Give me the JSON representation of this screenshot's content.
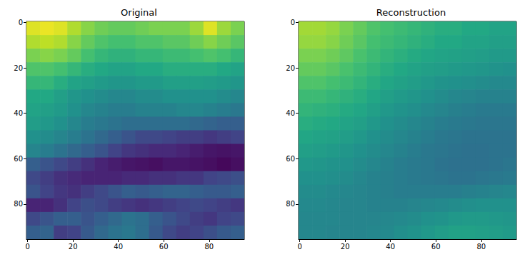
{
  "chart_data": [
    {
      "type": "heatmap",
      "title": "Original",
      "x_edges": [
        -0.5,
        5.5,
        11.5,
        17.5,
        23.5,
        29.5,
        35.5,
        41.5,
        47.5,
        53.5,
        59.5,
        65.5,
        71.5,
        77.5,
        83.5,
        89.5,
        95.5
      ],
      "y_edges": [
        -0.5,
        5.5,
        11.5,
        17.5,
        23.5,
        29.5,
        35.5,
        41.5,
        47.5,
        53.5,
        59.5,
        65.5,
        71.5,
        77.5,
        83.5,
        89.5,
        95.5
      ],
      "z": [
        [
          0.95,
          0.97,
          0.95,
          0.88,
          0.82,
          0.78,
          0.76,
          0.76,
          0.78,
          0.8,
          0.8,
          0.8,
          0.85,
          0.95,
          0.85,
          0.8
        ],
        [
          0.88,
          0.9,
          0.88,
          0.82,
          0.76,
          0.72,
          0.7,
          0.7,
          0.72,
          0.72,
          0.74,
          0.74,
          0.78,
          0.82,
          0.78,
          0.74
        ],
        [
          0.8,
          0.82,
          0.8,
          0.76,
          0.7,
          0.66,
          0.64,
          0.64,
          0.66,
          0.66,
          0.68,
          0.68,
          0.7,
          0.72,
          0.7,
          0.66
        ],
        [
          0.72,
          0.72,
          0.7,
          0.66,
          0.62,
          0.6,
          0.58,
          0.58,
          0.6,
          0.6,
          0.62,
          0.62,
          0.62,
          0.62,
          0.6,
          0.58
        ],
        [
          0.66,
          0.66,
          0.62,
          0.58,
          0.56,
          0.54,
          0.52,
          0.52,
          0.54,
          0.54,
          0.56,
          0.56,
          0.56,
          0.55,
          0.54,
          0.52
        ],
        [
          0.6,
          0.6,
          0.56,
          0.52,
          0.5,
          0.48,
          0.46,
          0.46,
          0.48,
          0.48,
          0.5,
          0.5,
          0.5,
          0.5,
          0.48,
          0.46
        ],
        [
          0.58,
          0.56,
          0.54,
          0.5,
          0.46,
          0.44,
          0.42,
          0.42,
          0.44,
          0.44,
          0.44,
          0.46,
          0.46,
          0.44,
          0.42,
          0.4
        ],
        [
          0.55,
          0.53,
          0.5,
          0.46,
          0.42,
          0.4,
          0.38,
          0.36,
          0.36,
          0.36,
          0.36,
          0.36,
          0.34,
          0.32,
          0.3,
          0.3
        ],
        [
          0.5,
          0.48,
          0.45,
          0.42,
          0.38,
          0.34,
          0.3,
          0.26,
          0.22,
          0.22,
          0.2,
          0.18,
          0.18,
          0.16,
          0.18,
          0.2
        ],
        [
          0.45,
          0.42,
          0.38,
          0.34,
          0.3,
          0.26,
          0.2,
          0.16,
          0.14,
          0.12,
          0.12,
          0.1,
          0.08,
          0.06,
          0.05,
          0.06
        ],
        [
          0.3,
          0.26,
          0.22,
          0.18,
          0.14,
          0.1,
          0.08,
          0.06,
          0.05,
          0.04,
          0.06,
          0.06,
          0.05,
          0.04,
          0.02,
          0.04
        ],
        [
          0.22,
          0.18,
          0.14,
          0.12,
          0.1,
          0.1,
          0.1,
          0.12,
          0.12,
          0.14,
          0.14,
          0.16,
          0.16,
          0.2,
          0.22,
          0.24
        ],
        [
          0.26,
          0.2,
          0.16,
          0.14,
          0.18,
          0.22,
          0.26,
          0.3,
          0.28,
          0.3,
          0.32,
          0.32,
          0.3,
          0.28,
          0.28,
          0.3
        ],
        [
          0.1,
          0.1,
          0.14,
          0.2,
          0.24,
          0.22,
          0.18,
          0.16,
          0.14,
          0.16,
          0.18,
          0.2,
          0.22,
          0.2,
          0.18,
          0.16
        ],
        [
          0.22,
          0.26,
          0.3,
          0.3,
          0.26,
          0.3,
          0.34,
          0.38,
          0.36,
          0.3,
          0.26,
          0.22,
          0.18,
          0.16,
          0.2,
          0.22
        ],
        [
          0.3,
          0.32,
          0.18,
          0.2,
          0.28,
          0.34,
          0.38,
          0.4,
          0.36,
          0.28,
          0.22,
          0.18,
          0.2,
          0.24,
          0.28,
          0.3
        ]
      ],
      "zlim": [
        0,
        1
      ],
      "xlim": [
        -0.5,
        95.5
      ],
      "ylim": [
        95.5,
        -0.5
      ],
      "xticks": [
        0,
        20,
        40,
        60,
        80
      ],
      "yticks": [
        0,
        20,
        40,
        60,
        80
      ]
    },
    {
      "type": "heatmap",
      "title": "Reconstruction",
      "x_edges": [
        -0.5,
        5.5,
        11.5,
        17.5,
        23.5,
        29.5,
        35.5,
        41.5,
        47.5,
        53.5,
        59.5,
        65.5,
        71.5,
        77.5,
        83.5,
        89.5,
        95.5
      ],
      "y_edges": [
        -0.5,
        5.5,
        11.5,
        17.5,
        23.5,
        29.5,
        35.5,
        41.5,
        47.5,
        53.5,
        59.5,
        65.5,
        71.5,
        77.5,
        83.5,
        89.5,
        95.5
      ],
      "z": [
        [
          0.86,
          0.86,
          0.84,
          0.8,
          0.76,
          0.72,
          0.7,
          0.68,
          0.66,
          0.64,
          0.62,
          0.62,
          0.6,
          0.6,
          0.58,
          0.58
        ],
        [
          0.84,
          0.84,
          0.82,
          0.78,
          0.74,
          0.7,
          0.68,
          0.66,
          0.64,
          0.62,
          0.6,
          0.6,
          0.58,
          0.58,
          0.56,
          0.56
        ],
        [
          0.8,
          0.8,
          0.78,
          0.75,
          0.71,
          0.68,
          0.65,
          0.63,
          0.61,
          0.59,
          0.58,
          0.57,
          0.56,
          0.55,
          0.54,
          0.54
        ],
        [
          0.76,
          0.76,
          0.74,
          0.71,
          0.68,
          0.65,
          0.62,
          0.6,
          0.58,
          0.56,
          0.55,
          0.54,
          0.53,
          0.52,
          0.51,
          0.5
        ],
        [
          0.72,
          0.72,
          0.7,
          0.68,
          0.65,
          0.62,
          0.59,
          0.57,
          0.55,
          0.53,
          0.51,
          0.5,
          0.49,
          0.48,
          0.47,
          0.47
        ],
        [
          0.68,
          0.68,
          0.66,
          0.64,
          0.62,
          0.59,
          0.56,
          0.54,
          0.52,
          0.5,
          0.48,
          0.46,
          0.45,
          0.44,
          0.44,
          0.44
        ],
        [
          0.65,
          0.64,
          0.63,
          0.61,
          0.59,
          0.56,
          0.53,
          0.51,
          0.49,
          0.47,
          0.45,
          0.43,
          0.42,
          0.41,
          0.41,
          0.41
        ],
        [
          0.62,
          0.61,
          0.6,
          0.58,
          0.56,
          0.53,
          0.5,
          0.48,
          0.46,
          0.44,
          0.42,
          0.41,
          0.4,
          0.39,
          0.39,
          0.39
        ],
        [
          0.59,
          0.58,
          0.57,
          0.55,
          0.53,
          0.5,
          0.48,
          0.46,
          0.44,
          0.42,
          0.4,
          0.39,
          0.38,
          0.38,
          0.38,
          0.38
        ],
        [
          0.56,
          0.55,
          0.54,
          0.52,
          0.5,
          0.48,
          0.46,
          0.44,
          0.42,
          0.4,
          0.39,
          0.38,
          0.37,
          0.37,
          0.38,
          0.38
        ],
        [
          0.53,
          0.52,
          0.51,
          0.5,
          0.48,
          0.46,
          0.44,
          0.42,
          0.41,
          0.4,
          0.38,
          0.37,
          0.37,
          0.37,
          0.38,
          0.39
        ],
        [
          0.5,
          0.5,
          0.49,
          0.48,
          0.46,
          0.44,
          0.43,
          0.42,
          0.41,
          0.4,
          0.39,
          0.38,
          0.38,
          0.39,
          0.4,
          0.41
        ],
        [
          0.48,
          0.48,
          0.47,
          0.46,
          0.45,
          0.44,
          0.43,
          0.42,
          0.42,
          0.42,
          0.42,
          0.42,
          0.43,
          0.44,
          0.45,
          0.46
        ],
        [
          0.47,
          0.47,
          0.46,
          0.45,
          0.45,
          0.44,
          0.44,
          0.44,
          0.45,
          0.46,
          0.47,
          0.48,
          0.49,
          0.5,
          0.5,
          0.5
        ],
        [
          0.46,
          0.46,
          0.46,
          0.45,
          0.45,
          0.45,
          0.46,
          0.47,
          0.48,
          0.5,
          0.51,
          0.53,
          0.54,
          0.54,
          0.53,
          0.52
        ],
        [
          0.46,
          0.46,
          0.45,
          0.45,
          0.45,
          0.46,
          0.47,
          0.49,
          0.51,
          0.53,
          0.55,
          0.57,
          0.57,
          0.56,
          0.55,
          0.54
        ]
      ],
      "zlim": [
        0,
        1
      ],
      "xlim": [
        -0.5,
        95.5
      ],
      "ylim": [
        95.5,
        -0.5
      ],
      "xticks": [
        0,
        20,
        40,
        60,
        80
      ],
      "yticks": [
        0,
        20,
        40,
        60,
        80
      ]
    }
  ]
}
